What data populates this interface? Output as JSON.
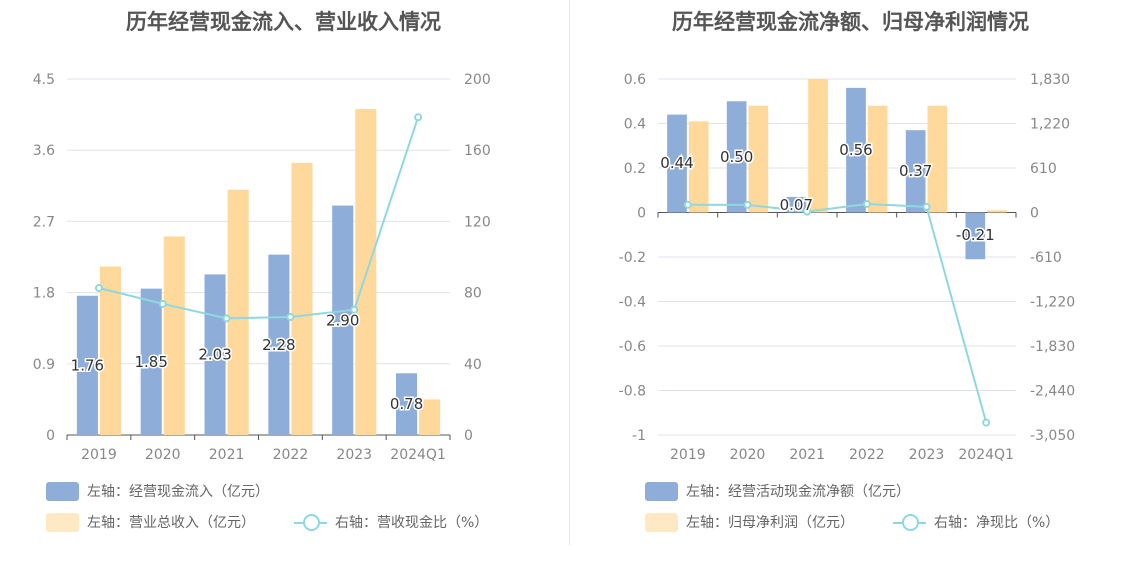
{
  "colors": {
    "bar1": "#8eadd9",
    "bar2": "#ffd99b",
    "line": "#90d8df",
    "grid": "#e0e3ea",
    "axis": "#888",
    "label": "#555"
  },
  "charts": {
    "left": {
      "title": "历年经营现金流入、营业收入情况",
      "legend": {
        "bar1": "左轴：经营现金流入（亿元）",
        "bar2": "左轴：营业总收入（亿元）",
        "line": "右轴：营收现金比（%）"
      }
    },
    "right": {
      "title": "历年经营现金流净额、归母净利润情况",
      "legend": {
        "bar1": "左轴：经营活动现金流净额（亿元）",
        "bar2": "左轴：归母净利润（亿元）",
        "line": "右轴：净现比（%）"
      }
    }
  },
  "chart_data": [
    {
      "type": "bar",
      "title": "历年经营现金流入、营业收入情况",
      "categories": [
        "2019",
        "2020",
        "2021",
        "2022",
        "2023",
        "2024Q1"
      ],
      "y_left": {
        "ticks": [
          "0",
          "0.9",
          "1.8",
          "2.7",
          "3.6",
          "4.5"
        ],
        "min": 0,
        "max": 4.5
      },
      "y_right": {
        "ticks": [
          "0",
          "40",
          "80",
          "120",
          "160",
          "200"
        ],
        "min": 0,
        "max": 200
      },
      "series": [
        {
          "name": "左轴：经营现金流入（亿元）",
          "axis": "left",
          "type": "bar",
          "values": [
            1.76,
            1.85,
            2.03,
            2.28,
            2.9,
            0.78
          ],
          "labels": [
            "1.76",
            "1.85",
            "2.03",
            "2.28",
            "2.90",
            "0.78"
          ]
        },
        {
          "name": "左轴：营业总收入（亿元）",
          "axis": "left",
          "type": "bar",
          "values": [
            2.13,
            2.51,
            3.1,
            3.44,
            4.12,
            0.45
          ]
        },
        {
          "name": "右轴：营收现金比（%）",
          "axis": "right",
          "type": "line",
          "values": [
            82.6,
            73.7,
            65.5,
            66.3,
            70.4,
            178.5
          ]
        }
      ],
      "grid": true
    },
    {
      "type": "bar",
      "title": "历年经营现金流净额、归母净利润情况",
      "categories": [
        "2019",
        "2020",
        "2021",
        "2022",
        "2023",
        "2024Q1"
      ],
      "y_left": {
        "ticks": [
          "-1",
          "-0.8",
          "-0.6",
          "-0.4",
          "-0.2",
          "0",
          "0.2",
          "0.4",
          "0.6"
        ],
        "min": -1,
        "max": 0.6
      },
      "y_right": {
        "ticks": [
          "-3,050",
          "-2,440",
          "-1,830",
          "-1,220",
          "-610",
          "0",
          "610",
          "1,220",
          "1,830"
        ],
        "min": -3050,
        "max": 1830
      },
      "series": [
        {
          "name": "左轴：经营活动现金流净额（亿元）",
          "axis": "left",
          "type": "bar",
          "values": [
            0.44,
            0.5,
            0.07,
            0.56,
            0.37,
            -0.21
          ],
          "labels": [
            "0.44",
            "0.50",
            "0.07",
            "0.56",
            "0.37",
            "-0.21"
          ]
        },
        {
          "name": "左轴：归母净利润（亿元）",
          "axis": "left",
          "type": "bar",
          "values": [
            0.41,
            0.48,
            0.6,
            0.48,
            0.48,
            0.01
          ]
        },
        {
          "name": "右轴：净现比（%）",
          "axis": "right",
          "type": "line",
          "values": [
            107,
            104,
            12,
            117,
            77,
            -2880
          ]
        }
      ],
      "grid": true
    }
  ]
}
